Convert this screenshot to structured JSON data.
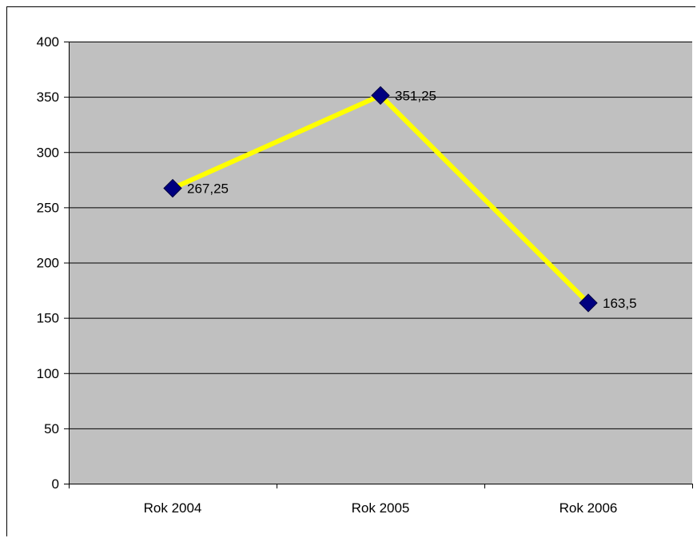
{
  "chart_data": {
    "type": "line",
    "categories": [
      "Rok 2004",
      "Rok 2005",
      "Rok 2006"
    ],
    "series": [
      {
        "values": [
          267.25,
          351.25,
          163.5
        ],
        "data_labels": [
          "267,25",
          "351,25",
          "163,5"
        ],
        "line_color": "#ffff00",
        "marker_color": "#000080",
        "marker": "diamond"
      }
    ],
    "y_ticks": [
      0,
      50,
      100,
      150,
      200,
      250,
      300,
      350,
      400
    ],
    "ylim": [
      0,
      400
    ],
    "grid": true,
    "legend": "none",
    "plot_background": "#c0c0c0",
    "grid_color": "#000000"
  }
}
